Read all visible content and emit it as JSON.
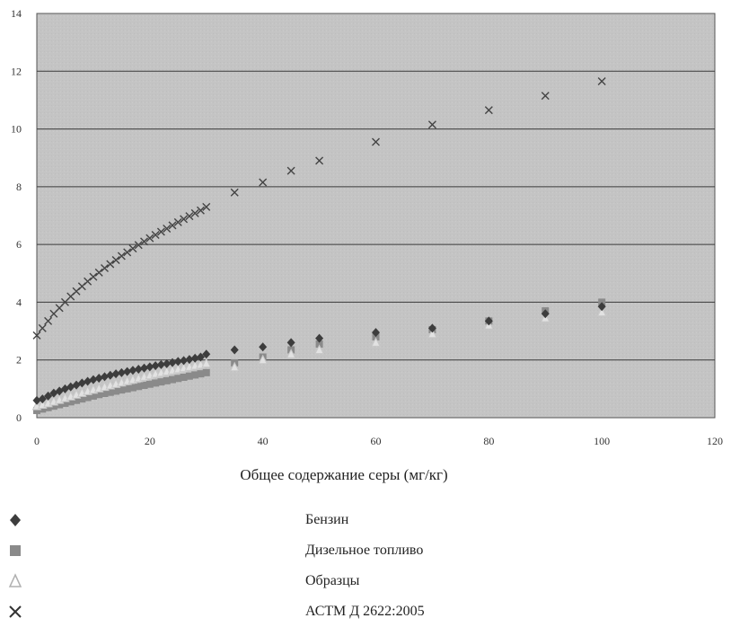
{
  "chart_data": {
    "type": "scatter",
    "title": "",
    "xlabel": "Общее содержание серы (мг/кг)",
    "ylabel": "",
    "xlim": [
      0,
      120
    ],
    "ylim": [
      0,
      14
    ],
    "xticks": [
      "0",
      "20",
      "40",
      "60",
      "80",
      "100",
      "120"
    ],
    "yticks": [
      "0",
      "2",
      "4",
      "6",
      "8",
      "10",
      "12",
      "14"
    ],
    "grid": "horizontal",
    "legend_position": "bottom",
    "series": [
      {
        "name": "Бензин",
        "marker": "diamond",
        "color": "#3d3d3d",
        "x": [
          0,
          1,
          2,
          3,
          4,
          5,
          6,
          7,
          8,
          9,
          10,
          11,
          12,
          13,
          14,
          15,
          16,
          17,
          18,
          19,
          20,
          21,
          22,
          23,
          24,
          25,
          26,
          27,
          28,
          29,
          30,
          35,
          40,
          45,
          50,
          60,
          70,
          80,
          90,
          100
        ],
        "y": [
          0.6,
          0.65,
          0.75,
          0.85,
          0.92,
          1.0,
          1.07,
          1.13,
          1.2,
          1.26,
          1.32,
          1.37,
          1.42,
          1.47,
          1.52,
          1.56,
          1.6,
          1.64,
          1.68,
          1.72,
          1.76,
          1.8,
          1.84,
          1.87,
          1.91,
          1.95,
          1.98,
          2.02,
          2.06,
          2.1,
          2.2,
          2.35,
          2.45,
          2.6,
          2.75,
          2.95,
          3.1,
          3.35,
          3.6,
          3.85
        ]
      },
      {
        "name": "Дизельное топливо",
        "marker": "square",
        "color": "#8a8a8a",
        "x": [
          0,
          1,
          2,
          3,
          4,
          5,
          6,
          7,
          8,
          9,
          10,
          11,
          12,
          13,
          14,
          15,
          16,
          17,
          18,
          19,
          20,
          21,
          22,
          23,
          24,
          25,
          26,
          27,
          28,
          29,
          30,
          35,
          40,
          45,
          50,
          60,
          70,
          80,
          90,
          100
        ],
        "y": [
          0.25,
          0.3,
          0.35,
          0.4,
          0.45,
          0.5,
          0.55,
          0.6,
          0.65,
          0.7,
          0.75,
          0.8,
          0.84,
          0.88,
          0.92,
          0.96,
          1.0,
          1.04,
          1.08,
          1.12,
          1.16,
          1.2,
          1.24,
          1.28,
          1.32,
          1.36,
          1.4,
          1.44,
          1.48,
          1.52,
          1.56,
          1.9,
          2.1,
          2.35,
          2.55,
          2.8,
          3.05,
          3.35,
          3.7,
          4.0
        ]
      },
      {
        "name": "Образцы",
        "marker": "triangle",
        "color": "#c8c8c8",
        "x": [
          0,
          1,
          2,
          3,
          4,
          5,
          6,
          7,
          8,
          9,
          10,
          11,
          12,
          13,
          14,
          15,
          16,
          17,
          18,
          19,
          20,
          21,
          22,
          23,
          24,
          25,
          26,
          27,
          28,
          29,
          30,
          35,
          40,
          45,
          50,
          60,
          70,
          80,
          90,
          100
        ],
        "y": [
          0.4,
          0.45,
          0.5,
          0.56,
          0.62,
          0.68,
          0.74,
          0.8,
          0.86,
          0.92,
          0.97,
          1.02,
          1.07,
          1.12,
          1.17,
          1.22,
          1.27,
          1.32,
          1.37,
          1.42,
          1.47,
          1.52,
          1.56,
          1.6,
          1.64,
          1.68,
          1.72,
          1.76,
          1.8,
          1.84,
          1.88,
          1.75,
          2.0,
          2.2,
          2.35,
          2.6,
          2.9,
          3.2,
          3.45,
          3.65
        ]
      },
      {
        "name": "АСТМ Д 2622:2005",
        "marker": "x",
        "color": "#444444",
        "x": [
          0,
          1,
          2,
          3,
          4,
          5,
          6,
          7,
          8,
          9,
          10,
          11,
          12,
          13,
          14,
          15,
          16,
          17,
          18,
          19,
          20,
          21,
          22,
          23,
          24,
          25,
          26,
          27,
          28,
          29,
          30,
          35,
          40,
          45,
          50,
          60,
          70,
          80,
          90,
          100
        ],
        "y": [
          2.85,
          3.1,
          3.35,
          3.6,
          3.8,
          4.0,
          4.2,
          4.38,
          4.55,
          4.72,
          4.88,
          5.03,
          5.18,
          5.32,
          5.46,
          5.6,
          5.73,
          5.86,
          5.98,
          6.1,
          6.22,
          6.33,
          6.44,
          6.55,
          6.66,
          6.77,
          6.88,
          6.98,
          7.08,
          7.18,
          7.3,
          7.8,
          8.15,
          8.55,
          8.9,
          9.55,
          10.15,
          10.65,
          11.15,
          11.65
        ]
      }
    ]
  },
  "legend": {
    "items": [
      "Бензин",
      "Дизельное топливо",
      "Образцы",
      "АСТМ Д 2622:2005"
    ]
  }
}
